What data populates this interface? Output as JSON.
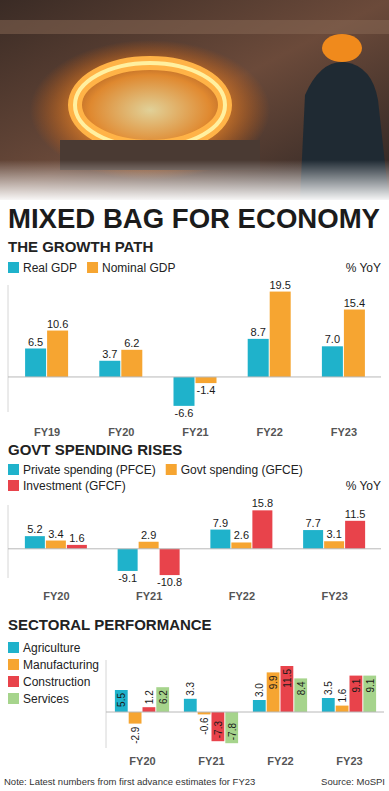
{
  "header": {
    "title": "MIXED BAG FOR ECONOMY"
  },
  "footer": {
    "note": "Note: Latest numbers from first advance estimates for FY23",
    "source": "Source: MoSPI"
  },
  "chart_data": [
    {
      "type": "bar",
      "title": "THE GROWTH PATH",
      "ylabel": "% YoY",
      "categories": [
        "FY19",
        "FY20",
        "FY21",
        "FY22",
        "FY23"
      ],
      "series": [
        {
          "name": "Real GDP",
          "color": "#1fb2cb",
          "values": [
            6.5,
            3.7,
            -6.6,
            8.7,
            7.0
          ],
          "value_labels": [
            "6.5",
            "3.7",
            "-6.6",
            "8.7",
            "7.0"
          ]
        },
        {
          "name": "Nominal GDP",
          "color": "#f6a531",
          "values": [
            10.6,
            6.2,
            -1.4,
            19.5,
            15.4
          ],
          "value_labels": [
            "10.6",
            "6.2",
            "-1.4",
            "19.5",
            "15.4"
          ]
        }
      ],
      "ylim": [
        -8,
        21
      ],
      "yticks": [
        0
      ],
      "tick_labels": false,
      "data_labels": true,
      "legend": "top",
      "grid": false
    },
    {
      "type": "bar",
      "title": "GOVT SPENDING RISES",
      "ylabel": "% YoY",
      "categories": [
        "FY20",
        "FY21",
        "FY22",
        "FY23"
      ],
      "series": [
        {
          "name": "Private spending (PFCE)",
          "color": "#1fb2cb",
          "values": [
            5.2,
            -9.1,
            7.9,
            7.7
          ],
          "value_labels": [
            "5.2",
            "-9.1",
            "7.9",
            "7.7"
          ]
        },
        {
          "name": "Govt spending (GFCE)",
          "color": "#f6a531",
          "values": [
            3.4,
            2.9,
            2.6,
            3.1
          ],
          "value_labels": [
            "3.4",
            "2.9",
            "2.6",
            "3.1"
          ]
        },
        {
          "name": "Investment (GFCF)",
          "color": "#e8434b",
          "values": [
            1.6,
            -10.8,
            15.8,
            11.5
          ],
          "value_labels": [
            "1.6",
            "-10.8",
            "15.8",
            "11.5"
          ]
        }
      ],
      "ylim": [
        -12,
        18
      ],
      "yticks": [
        0
      ],
      "tick_labels": false,
      "data_labels": true,
      "legend": "top",
      "grid": false
    },
    {
      "type": "bar",
      "title": "SECTORAL PERFORMANCE",
      "categories": [
        "FY20",
        "FY21",
        "FY22",
        "FY23"
      ],
      "series": [
        {
          "name": "Agriculture",
          "color": "#1fb2cb",
          "values": [
            5.5,
            3.3,
            3.0,
            3.5
          ],
          "value_labels": [
            "5.5",
            "3.3",
            "3.0",
            "3.5"
          ]
        },
        {
          "name": "Manufacturing",
          "color": "#f6a531",
          "values": [
            -2.9,
            -0.6,
            9.9,
            1.6
          ],
          "value_labels": [
            "-2.9",
            "-0.6",
            "9.9",
            "1.6"
          ]
        },
        {
          "name": "Construction",
          "color": "#e8434b",
          "values": [
            1.2,
            -7.3,
            11.5,
            9.1
          ],
          "value_labels": [
            "1.2",
            "-7.3",
            "11.5",
            "9.1"
          ]
        },
        {
          "name": "Services",
          "color": "#a6d48c",
          "values": [
            6.2,
            -7.8,
            8.4,
            9.1
          ],
          "value_labels": [
            "6.2",
            "-7.8",
            "8.4",
            "9.1"
          ]
        }
      ],
      "ylim": [
        -9,
        13
      ],
      "yticks": [
        0
      ],
      "tick_labels": false,
      "data_labels": true,
      "legend": "left",
      "grid": false
    }
  ]
}
